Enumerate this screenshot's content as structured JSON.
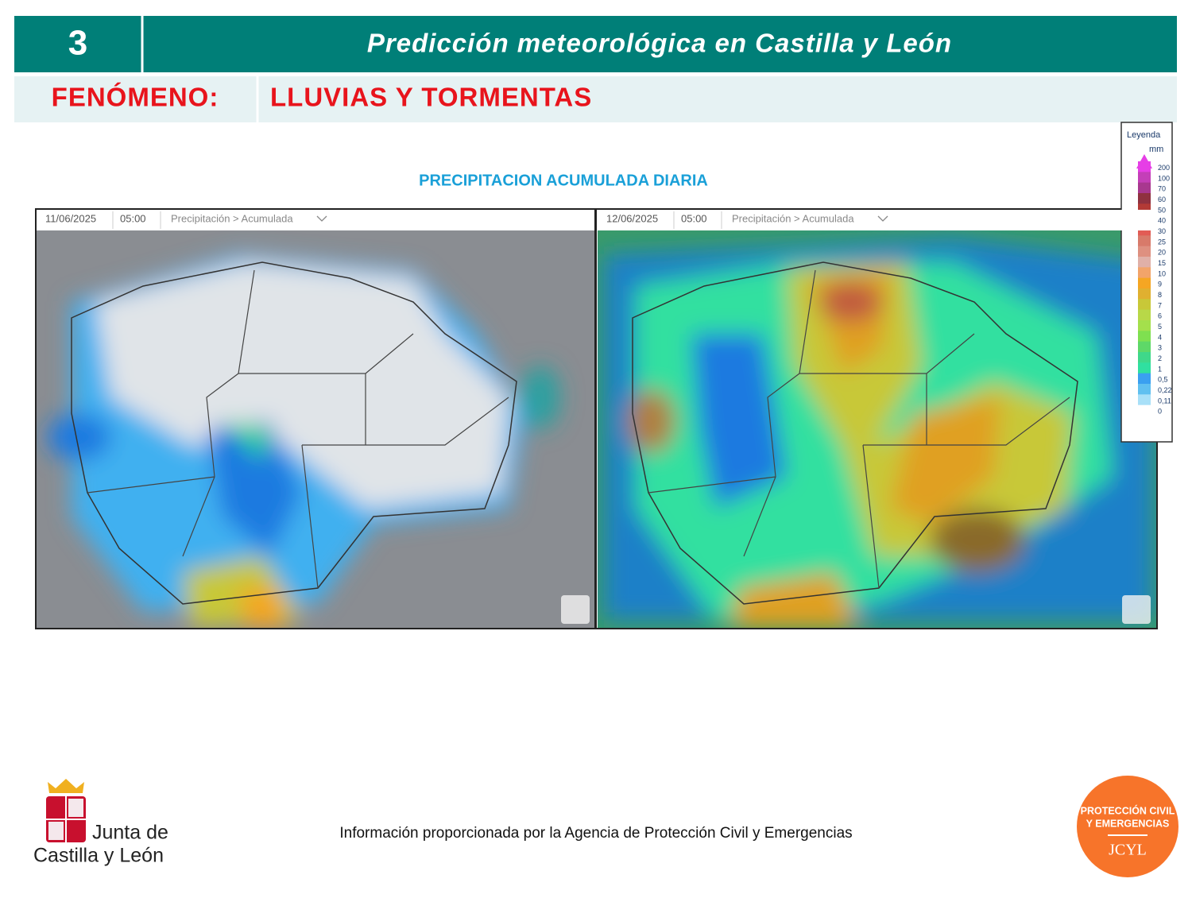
{
  "header": {
    "number": "3",
    "title": "Predicción meteorológica en Castilla y León"
  },
  "phenomenon": {
    "label": "FENÓMENO:",
    "value": "LLUVIAS Y TORMENTAS"
  },
  "section_title": "PRECIPITACION ACUMULADA DIARIA",
  "maps": [
    {
      "date": "11/06/2025",
      "time": "05:00",
      "layer": "Precipitación > Acumulada"
    },
    {
      "date": "12/06/2025",
      "time": "05:00",
      "layer": "Precipitación > Acumulada"
    }
  ],
  "legend": {
    "title": "Leyenda",
    "unit": "mm",
    "items": [
      {
        "label": "200",
        "color": "#e63ee6"
      },
      {
        "label": "100",
        "color": "#c43fb8"
      },
      {
        "label": "70",
        "color": "#a8388f"
      },
      {
        "label": "60",
        "color": "#8f3140"
      },
      {
        "label": "50",
        "color": "#b33a36"
      },
      {
        "label": "40",
        "color": "#e0403e"
      },
      {
        "label": "30",
        "color": "#e25c55"
      },
      {
        "label": "25",
        "color": "#d87a6a"
      },
      {
        "label": "20",
        "color": "#de9080"
      },
      {
        "label": "15",
        "color": "#e0b0a8"
      },
      {
        "label": "10",
        "color": "#f2a46a"
      },
      {
        "label": "9",
        "color": "#f5a623"
      },
      {
        "label": "8",
        "color": "#e0b030"
      },
      {
        "label": "7",
        "color": "#c8c838"
      },
      {
        "label": "6",
        "color": "#b8d848"
      },
      {
        "label": "5",
        "color": "#a4e04c"
      },
      {
        "label": "4",
        "color": "#7fe050"
      },
      {
        "label": "3",
        "color": "#5ed868"
      },
      {
        "label": "2",
        "color": "#3fd88a"
      },
      {
        "label": "1",
        "color": "#30e0a0"
      },
      {
        "label": "0,5",
        "color": "#3aa0f0"
      },
      {
        "label": "0,22",
        "color": "#60c0f0"
      },
      {
        "label": "0,11",
        "color": "#a8e0f8"
      },
      {
        "label": "0",
        "color": "#ffffff"
      }
    ]
  },
  "footer": {
    "text": "Información proporcionada por la Agencia de Protección Civil y Emergencias",
    "logo_left": [
      "Junta de",
      "Castilla y León"
    ],
    "logo_right": [
      "PROTECCIÓN CIVIL",
      "Y EMERGENCIAS",
      "JCYL"
    ]
  }
}
